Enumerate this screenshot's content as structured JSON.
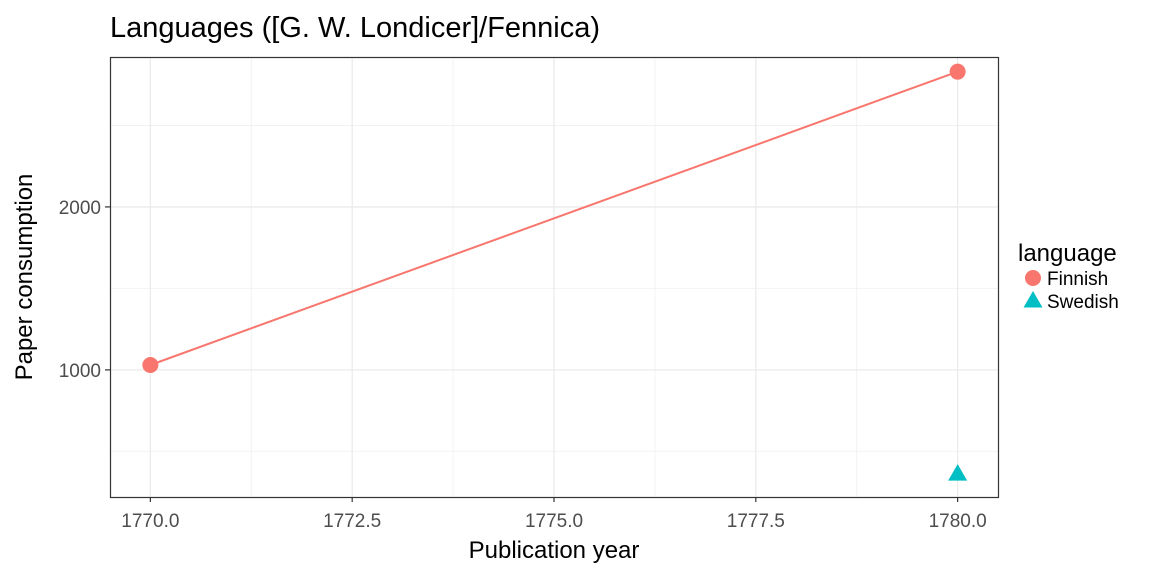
{
  "chart_data": {
    "type": "line",
    "title": "Languages ([G. W. Londicer]/Fennica)",
    "xlabel": "Publication year",
    "ylabel": "Paper consumption",
    "xlim": [
      1769.5,
      1780.5
    ],
    "ylim": [
      220,
      2920
    ],
    "x_ticks": [
      1770,
      1772.5,
      1775,
      1777.5,
      1780
    ],
    "x_tick_labels": [
      "1770.0",
      "1772.5",
      "1775.0",
      "1777.5",
      "1780.0"
    ],
    "y_ticks": [
      1000,
      2000
    ],
    "y_tick_labels": [
      "1000",
      "2000"
    ],
    "grid": true,
    "legend": {
      "title": "language",
      "position": "right"
    },
    "series": [
      {
        "name": "Finnish",
        "color": "#F8766D",
        "marker": "circle",
        "line": true,
        "x": [
          1770,
          1780
        ],
        "y": [
          1030,
          2830
        ]
      },
      {
        "name": "Swedish",
        "color": "#00BFC4",
        "marker": "triangle",
        "line": false,
        "x": [
          1780
        ],
        "y": [
          360
        ]
      }
    ]
  }
}
